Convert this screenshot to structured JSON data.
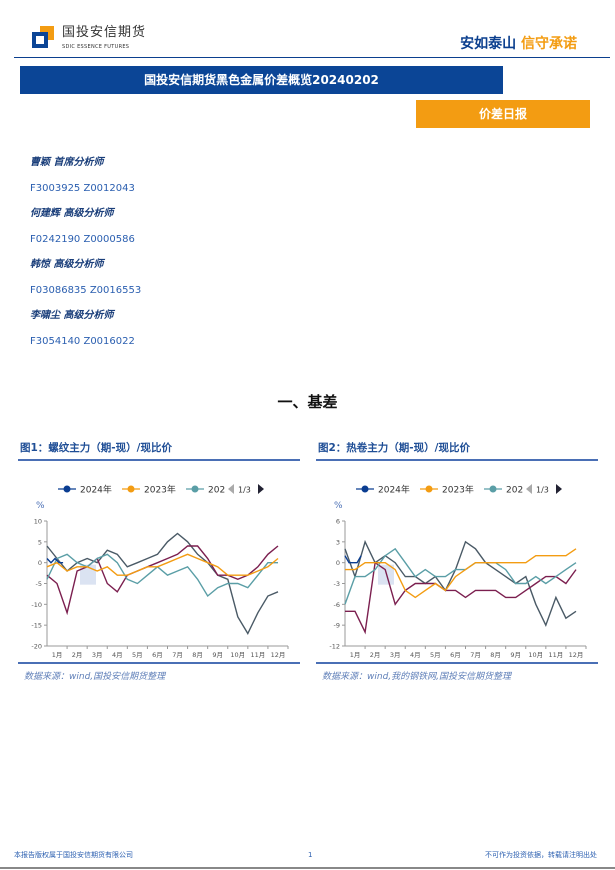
{
  "header": {
    "logo_cn": "国投安信期货",
    "logo_en": "SDIC ESSENCE FUTURES",
    "slogan_a": "安如泰山",
    "slogan_b": "信守承诺"
  },
  "title": "国投安信期货黑色金属价差概览20240202",
  "tag": "价差日报",
  "analysts": [
    {
      "name": "曹颖 首席分析师",
      "code": "F3003925 Z0012043"
    },
    {
      "name": "何建辉 高级分析师",
      "code": "F0242190 Z0000586"
    },
    {
      "name": "韩惊 高级分析师",
      "code": "F03086835 Z0016553"
    },
    {
      "name": "李啸尘 高级分析师",
      "code": "F3054140 Z0016022"
    }
  ],
  "section_title": "一、基差",
  "footer": {
    "left": "本报告版权属于国投安信期货有限公司",
    "page": "1",
    "right": "不可作为投资依据，转载请注明出处"
  },
  "colors": {
    "primary": "#0b4596",
    "accent": "#f39c12"
  },
  "chart_data": [
    {
      "type": "line",
      "title": "图1：螺纹主力（期-现）/现比价",
      "ylabel": "%",
      "source": "数据来源：wind,国投安信期货整理",
      "legend": {
        "items": [
          "2024年",
          "2023年",
          "202"
        ],
        "page": "1/3",
        "placement": "top"
      },
      "categories": [
        "1月",
        "2月",
        "3月",
        "4月",
        "5月",
        "6月",
        "7月",
        "8月",
        "9月",
        "10月",
        "11月",
        "12月"
      ],
      "ylim": [
        -20,
        10
      ],
      "yticks": [
        10,
        5,
        0,
        -5,
        -10,
        -15,
        -20
      ],
      "grid": false,
      "x": [
        1,
        1.5,
        2,
        2.5,
        3,
        3.5,
        4,
        4.5,
        5,
        5.5,
        6,
        6.5,
        7,
        7.5,
        8,
        8.5,
        9,
        9.5,
        10,
        10.5,
        11,
        11.5,
        12,
        12.5
      ],
      "series": [
        {
          "name": "2024年",
          "color": "#0a3d91",
          "x": [
            1,
            1.2,
            1.4,
            1.6,
            1.8
          ],
          "values": [
            1,
            0,
            1,
            0,
            0
          ]
        },
        {
          "name": "2023年",
          "color": "#f39c12",
          "values": [
            -1,
            0,
            -2,
            -1,
            -1,
            -2,
            -1,
            -3,
            -3,
            -2,
            -1,
            -1,
            0,
            1,
            2,
            1,
            0,
            -1,
            -3,
            -3,
            -3,
            -2,
            -1,
            1
          ]
        },
        {
          "name": "202",
          "color": "#5a9ea6",
          "values": [
            -4,
            1,
            2,
            0,
            -1,
            1,
            2,
            0,
            -4,
            -5,
            -3,
            -1,
            -3,
            -2,
            -1,
            -4,
            -8,
            -6,
            -5,
            -5,
            -6,
            -3,
            0,
            0
          ]
        },
        {
          "color": "#7b1f4f",
          "values": [
            -3,
            -5,
            -12,
            -2,
            -1,
            1,
            -5,
            -7,
            -3,
            -2,
            -1,
            0,
            1,
            2,
            4,
            4,
            1,
            -3,
            -3,
            -4,
            -3,
            -1,
            2,
            4
          ]
        },
        {
          "color": "#4a5a66",
          "values": [
            4,
            1,
            -2,
            0,
            1,
            0,
            3,
            2,
            -1,
            0,
            1,
            2,
            5,
            7,
            5,
            2,
            0,
            -3,
            -4,
            -13,
            -17,
            -12,
            -8,
            -7
          ]
        }
      ]
    },
    {
      "type": "line",
      "title": "图2：热卷主力（期-现）/现比价",
      "ylabel": "%",
      "source": "数据来源：wind,我的钢铁网,国投安信期货整理",
      "legend": {
        "items": [
          "2024年",
          "2023年",
          "202"
        ],
        "page": "1/3",
        "placement": "top"
      },
      "categories": [
        "1月",
        "2月",
        "3月",
        "4月",
        "5月",
        "6月",
        "7月",
        "8月",
        "9月",
        "10月",
        "11月",
        "12月"
      ],
      "ylim": [
        -12,
        6
      ],
      "yticks": [
        6,
        3,
        0,
        -3,
        -6,
        -9,
        -12
      ],
      "grid": false,
      "x": [
        1,
        1.5,
        2,
        2.5,
        3,
        3.5,
        4,
        4.5,
        5,
        5.5,
        6,
        6.5,
        7,
        7.5,
        8,
        8.5,
        9,
        9.5,
        10,
        10.5,
        11,
        11.5,
        12,
        12.5
      ],
      "series": [
        {
          "name": "2024年",
          "color": "#0a3d91",
          "x": [
            1,
            1.2,
            1.4,
            1.6,
            1.8
          ],
          "values": [
            1,
            0,
            0,
            0,
            1
          ]
        },
        {
          "name": "2023年",
          "color": "#f39c12",
          "values": [
            -1,
            -1,
            0,
            0,
            0,
            -1,
            -4,
            -5,
            -4,
            -3,
            -4,
            -2,
            -1,
            0,
            0,
            0,
            0,
            0,
            0,
            1,
            1,
            1,
            1,
            2
          ]
        },
        {
          "name": "202",
          "color": "#5a9ea6",
          "values": [
            -6,
            -2,
            -2,
            -1,
            1,
            2,
            0,
            -2,
            -1,
            -2,
            -2,
            -1,
            -1,
            0,
            0,
            0,
            -1,
            -3,
            -3,
            -2,
            -3,
            -2,
            -1,
            0
          ]
        },
        {
          "color": "#7b1f4f",
          "values": [
            -7,
            -7,
            -10,
            0,
            -1,
            -6,
            -4,
            -3,
            -3,
            -3,
            -4,
            -4,
            -5,
            -4,
            -4,
            -4,
            -5,
            -5,
            -4,
            -3,
            -2,
            -2,
            -3,
            -1
          ]
        },
        {
          "color": "#4a5a66",
          "values": [
            2,
            -2,
            3,
            0,
            1,
            0,
            -2,
            -2,
            -3,
            -2,
            -4,
            -1,
            3,
            2,
            0,
            -1,
            -2,
            -3,
            -2,
            -6,
            -9,
            -5,
            -8,
            -7
          ]
        }
      ]
    }
  ]
}
